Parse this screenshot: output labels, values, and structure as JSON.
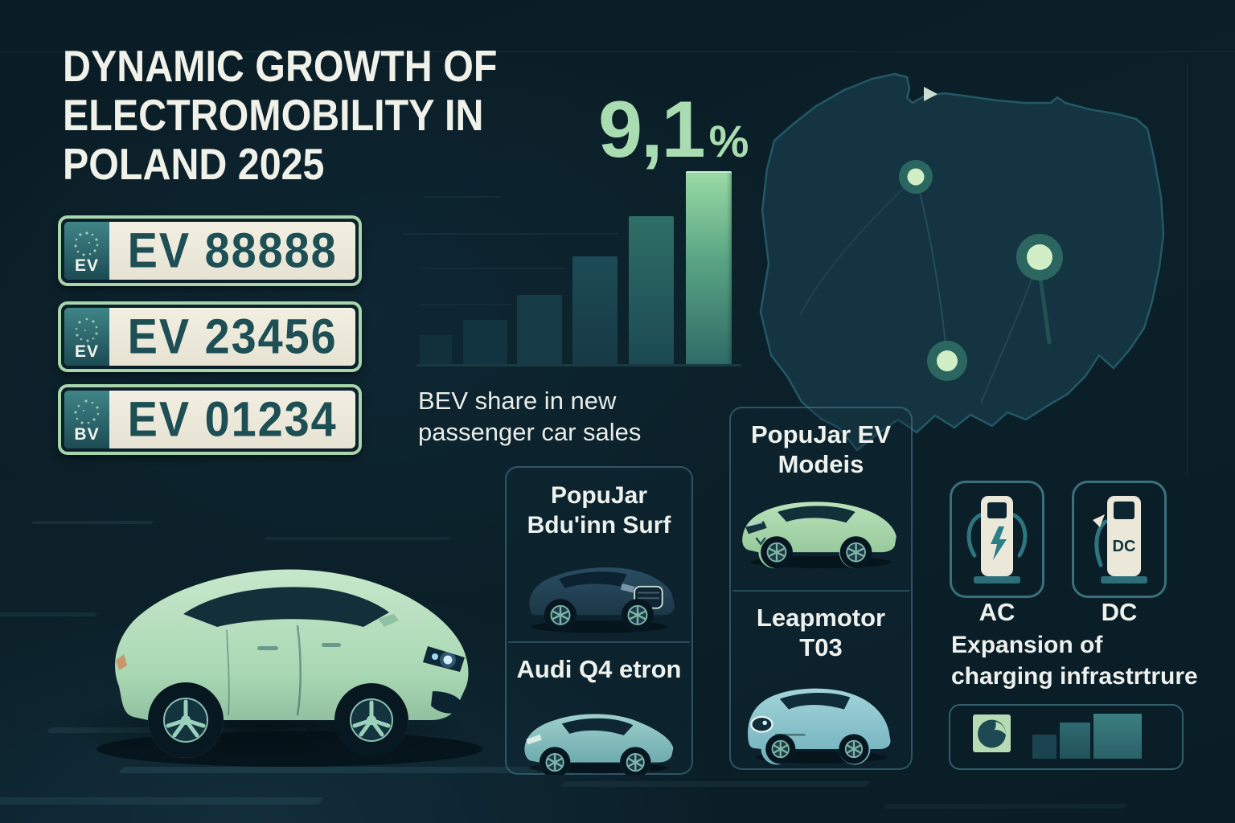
{
  "header": {
    "title_lines": [
      "DYNAMIC GROWTH OF",
      "ELECTROMOBILITY IN",
      "POLAND 2025"
    ]
  },
  "plates": {
    "items": [
      {
        "band_label": "EV",
        "number": "EV 88888"
      },
      {
        "band_label": "EV",
        "number": "EV 23456"
      },
      {
        "band_label": "BV",
        "number": "EV 01234"
      }
    ]
  },
  "chart_data": {
    "type": "bar",
    "title": "BEV share in new passenger car sales",
    "highlight_value": "9,1",
    "highlight_unit": "%",
    "categories": [
      "",
      "",
      "",
      "",
      "",
      ""
    ],
    "values": [
      1.4,
      2.1,
      3.3,
      5.1,
      7.0,
      9.1
    ],
    "xlabel": "",
    "ylabel": "",
    "ylim": [
      0,
      9.6
    ],
    "legend": "none",
    "grid": "faint partial horizontal gridlines on left side only",
    "note": "six ascending unlabeled bars; only the final bar value is labeled 9,1%; last two bars highlighted in green"
  },
  "chart_caption": {
    "line1": "BEV share in new",
    "line2": "passenger car sales"
  },
  "map": {
    "region": "Poland",
    "pin_count": 3,
    "pins": [
      {
        "size": "small",
        "position": "north-central"
      },
      {
        "size": "large",
        "position": "east-central"
      },
      {
        "size": "medium",
        "position": "south-central"
      }
    ]
  },
  "panel_models_left": {
    "header_line1": "PopuJar",
    "header_line2": "Bdu'inn Surf",
    "section2_title": "Audi Q4 etron"
  },
  "panel_models_right": {
    "header_line1": "PopuJar EV",
    "header_line2": "Modeis",
    "section2_line1": "Leapmotor",
    "section2_line2": "T03"
  },
  "charging": {
    "ac_label": "AC",
    "dc_label": "DC",
    "dc_unit_text": "DC",
    "heading_line1": "Expansion of",
    "heading_line2": "charging infrastrtrure"
  },
  "icons": {
    "ac_charger": "ev-charger-with-lightning-bolt-icon",
    "dc_charger": "ev-charger-dc-icon",
    "network_logo": "charging-network-logo-icon",
    "map_pin": "charger-location-pin-icon",
    "growth_squares": "ascending-squares-growth-icon"
  },
  "colors": {
    "background": "#0a1d26",
    "accent_green": "#a9dcb0",
    "plate_cream": "#ece9da",
    "plate_text": "#1d4f55",
    "plate_border": "#a7d5ac",
    "panel_border": "#56929f",
    "map_fill": "#133440",
    "pin_outer": "#2e6b63",
    "pin_inner": "#d2eec6",
    "bar_highlight_top": "#9adca6",
    "charger_body": "#ebe8da",
    "charger_teal": "#2d7680"
  }
}
